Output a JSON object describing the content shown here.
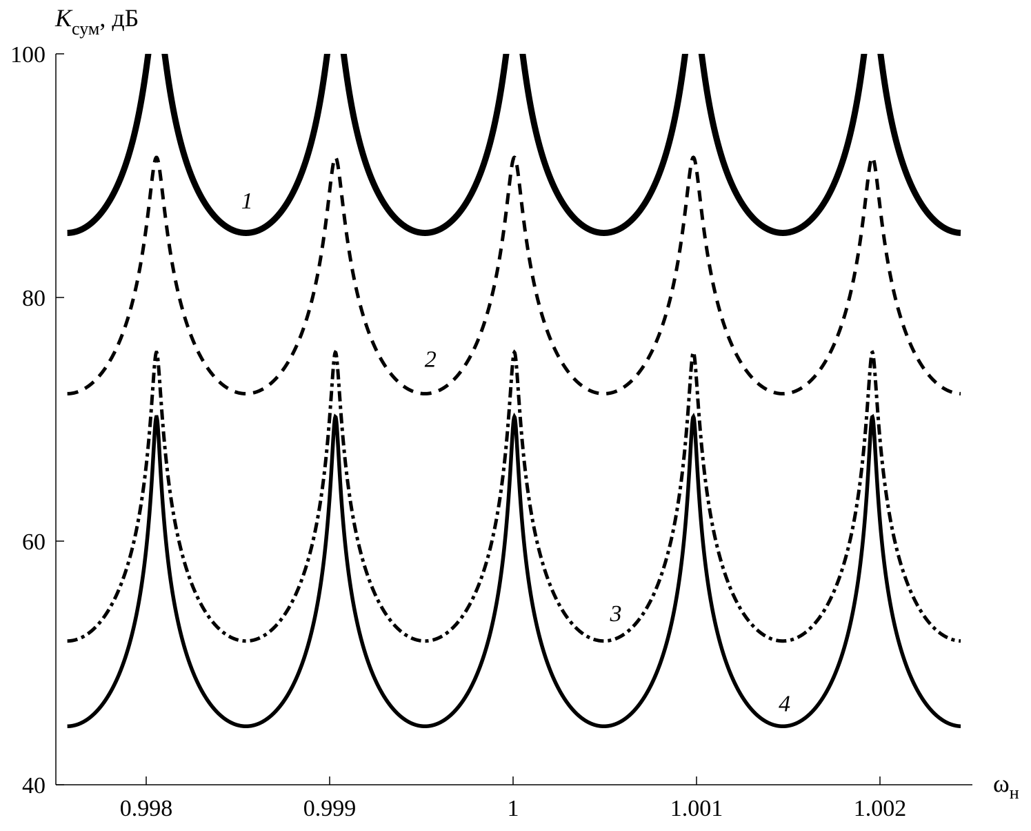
{
  "chart_data": {
    "type": "line",
    "title": "",
    "ylabel": "K",
    "ylabel_sub": "сум",
    "ylabel_unit": ", дБ",
    "xlabel": "ω",
    "xlabel_sub": "н",
    "xlim": [
      0.99757,
      1.00244
    ],
    "ylim": [
      40,
      100
    ],
    "xticks": [
      0.998,
      0.999,
      1,
      1.001,
      1.002
    ],
    "xtick_labels": [
      "0.998",
      "0.999",
      "1",
      "1.001",
      "1.002"
    ],
    "yticks": [
      40,
      60,
      80,
      100
    ],
    "ytick_labels": [
      "40",
      "60",
      "80",
      "100"
    ],
    "grid": false,
    "resonance_peaks_x": [
      0.998056,
      0.999032,
      1.000007,
      1.000983,
      1.001958
    ],
    "period": 0.0009756,
    "series": [
      {
        "name": "1",
        "style": "thick-solid",
        "min": 85.3,
        "peak": 104,
        "label_at": [
          0.99855,
          88
        ]
      },
      {
        "name": "2",
        "style": "dashed",
        "min": 72.1,
        "peak": 91.5,
        "label_at": [
          0.99955,
          75
        ]
      },
      {
        "name": "3",
        "style": "dash-dot",
        "min": 51.8,
        "peak": 75.5,
        "label_at": [
          1.00056,
          54.1
        ]
      },
      {
        "name": "4",
        "style": "solid",
        "min": 44.8,
        "peak": 70.2,
        "label_at": [
          1.00148,
          46.7
        ]
      }
    ]
  }
}
